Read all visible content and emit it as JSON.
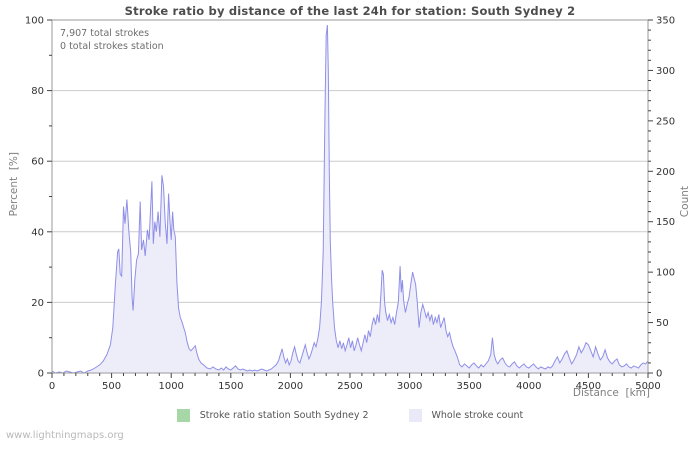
{
  "watermark": "www.lightningmaps.org",
  "chart_data": {
    "type": "area",
    "title": "Stroke ratio by distance of the last 24h for station: South Sydney 2",
    "annotations": [
      "7,907 total strokes",
      "0 total strokes station"
    ],
    "x_axis": {
      "label": "Distance  [km]",
      "min": 0,
      "max": 5000,
      "major": 500,
      "minor": 100,
      "ticks": [
        0,
        500,
        1000,
        1500,
        2000,
        2500,
        3000,
        3500,
        4000,
        4500,
        5000
      ]
    },
    "y_left": {
      "label": "Percent  [%]",
      "min": 0,
      "max": 100,
      "major": 20,
      "minor": 10,
      "ticks": [
        0,
        20,
        40,
        60,
        80,
        100
      ]
    },
    "y_right": {
      "label": "Count",
      "min": 0,
      "max": 350,
      "major": 50,
      "minor": 10,
      "ticks": [
        0,
        50,
        100,
        150,
        200,
        250,
        300,
        350
      ]
    },
    "grid": "horizontal-only",
    "legend_position": "bottom-center",
    "legend": [
      {
        "label": "Stroke ratio station South Sydney 2",
        "color": "#a7d7a7"
      },
      {
        "label": "Whole stroke count",
        "color": "#e9e9f8"
      }
    ],
    "colors": {
      "line": "#8f8fe8",
      "fill": "#ededf9",
      "grid": "#cccccc",
      "frame": "#9a9a9a",
      "tick": "#444444",
      "tick_label": "#333333"
    },
    "series": [
      {
        "name": "Whole stroke count",
        "axis": "right",
        "points": [
          [
            0,
            2
          ],
          [
            30,
            0
          ],
          [
            60,
            1
          ],
          [
            90,
            0
          ],
          [
            120,
            2
          ],
          [
            150,
            1
          ],
          [
            180,
            0
          ],
          [
            210,
            1
          ],
          [
            240,
            2
          ],
          [
            270,
            0
          ],
          [
            300,
            2
          ],
          [
            330,
            3
          ],
          [
            360,
            5
          ],
          [
            400,
            8
          ],
          [
            430,
            12
          ],
          [
            460,
            18
          ],
          [
            490,
            28
          ],
          [
            510,
            45
          ],
          [
            530,
            85
          ],
          [
            550,
            120
          ],
          [
            560,
            123
          ],
          [
            572,
            98
          ],
          [
            585,
            96
          ],
          [
            600,
            165
          ],
          [
            612,
            148
          ],
          [
            628,
            172
          ],
          [
            645,
            140
          ],
          [
            660,
            120
          ],
          [
            672,
            75
          ],
          [
            680,
            62
          ],
          [
            695,
            92
          ],
          [
            710,
            112
          ],
          [
            725,
            118
          ],
          [
            740,
            170
          ],
          [
            752,
            122
          ],
          [
            768,
            132
          ],
          [
            782,
            116
          ],
          [
            800,
            142
          ],
          [
            815,
            132
          ],
          [
            838,
            190
          ],
          [
            850,
            128
          ],
          [
            862,
            150
          ],
          [
            875,
            140
          ],
          [
            890,
            160
          ],
          [
            905,
            135
          ],
          [
            922,
            196
          ],
          [
            935,
            185
          ],
          [
            950,
            150
          ],
          [
            965,
            128
          ],
          [
            978,
            178
          ],
          [
            990,
            150
          ],
          [
            1000,
            132
          ],
          [
            1012,
            160
          ],
          [
            1022,
            142
          ],
          [
            1034,
            135
          ],
          [
            1048,
            90
          ],
          [
            1062,
            64
          ],
          [
            1076,
            55
          ],
          [
            1090,
            51
          ],
          [
            1105,
            45
          ],
          [
            1118,
            40
          ],
          [
            1135,
            30
          ],
          [
            1150,
            24
          ],
          [
            1165,
            22
          ],
          [
            1180,
            24
          ],
          [
            1202,
            27
          ],
          [
            1215,
            20
          ],
          [
            1230,
            14
          ],
          [
            1250,
            10
          ],
          [
            1272,
            8
          ],
          [
            1300,
            5
          ],
          [
            1328,
            4
          ],
          [
            1350,
            6
          ],
          [
            1375,
            4
          ],
          [
            1400,
            3
          ],
          [
            1420,
            5
          ],
          [
            1440,
            3
          ],
          [
            1460,
            6
          ],
          [
            1480,
            4
          ],
          [
            1500,
            3
          ],
          [
            1520,
            5
          ],
          [
            1540,
            7
          ],
          [
            1560,
            4
          ],
          [
            1580,
            3
          ],
          [
            1600,
            4
          ],
          [
            1620,
            3
          ],
          [
            1640,
            2
          ],
          [
            1660,
            3
          ],
          [
            1680,
            2
          ],
          [
            1700,
            3
          ],
          [
            1720,
            2
          ],
          [
            1740,
            3
          ],
          [
            1760,
            4
          ],
          [
            1780,
            3
          ],
          [
            1800,
            2
          ],
          [
            1820,
            3
          ],
          [
            1840,
            4
          ],
          [
            1860,
            6
          ],
          [
            1880,
            8
          ],
          [
            1900,
            12
          ],
          [
            1915,
            18
          ],
          [
            1930,
            24
          ],
          [
            1945,
            16
          ],
          [
            1960,
            10
          ],
          [
            1975,
            14
          ],
          [
            1990,
            8
          ],
          [
            2005,
            12
          ],
          [
            2020,
            20
          ],
          [
            2035,
            26
          ],
          [
            2050,
            18
          ],
          [
            2065,
            12
          ],
          [
            2080,
            10
          ],
          [
            2095,
            16
          ],
          [
            2110,
            22
          ],
          [
            2125,
            28
          ],
          [
            2140,
            20
          ],
          [
            2155,
            14
          ],
          [
            2170,
            18
          ],
          [
            2185,
            24
          ],
          [
            2200,
            30
          ],
          [
            2215,
            26
          ],
          [
            2230,
            34
          ],
          [
            2245,
            45
          ],
          [
            2260,
            70
          ],
          [
            2275,
            120
          ],
          [
            2290,
            260
          ],
          [
            2300,
            335
          ],
          [
            2310,
            345
          ],
          [
            2318,
            300
          ],
          [
            2326,
            200
          ],
          [
            2335,
            130
          ],
          [
            2345,
            95
          ],
          [
            2355,
            70
          ],
          [
            2370,
            45
          ],
          [
            2385,
            32
          ],
          [
            2400,
            25
          ],
          [
            2415,
            32
          ],
          [
            2430,
            24
          ],
          [
            2445,
            30
          ],
          [
            2460,
            22
          ],
          [
            2475,
            28
          ],
          [
            2490,
            35
          ],
          [
            2505,
            25
          ],
          [
            2520,
            32
          ],
          [
            2535,
            22
          ],
          [
            2550,
            28
          ],
          [
            2565,
            35
          ],
          [
            2580,
            28
          ],
          [
            2595,
            22
          ],
          [
            2610,
            30
          ],
          [
            2625,
            38
          ],
          [
            2640,
            30
          ],
          [
            2655,
            42
          ],
          [
            2670,
            36
          ],
          [
            2685,
            48
          ],
          [
            2700,
            55
          ],
          [
            2715,
            48
          ],
          [
            2730,
            58
          ],
          [
            2745,
            50
          ],
          [
            2760,
            80
          ],
          [
            2770,
            102
          ],
          [
            2780,
            98
          ],
          [
            2790,
            70
          ],
          [
            2800,
            60
          ],
          [
            2815,
            52
          ],
          [
            2830,
            58
          ],
          [
            2845,
            50
          ],
          [
            2860,
            55
          ],
          [
            2875,
            48
          ],
          [
            2890,
            60
          ],
          [
            2905,
            70
          ],
          [
            2920,
            106
          ],
          [
            2930,
            80
          ],
          [
            2940,
            92
          ],
          [
            2950,
            72
          ],
          [
            2965,
            60
          ],
          [
            2980,
            68
          ],
          [
            2995,
            75
          ],
          [
            3010,
            88
          ],
          [
            3025,
            100
          ],
          [
            3035,
            95
          ],
          [
            3050,
            88
          ],
          [
            3065,
            70
          ],
          [
            3080,
            45
          ],
          [
            3095,
            60
          ],
          [
            3110,
            68
          ],
          [
            3125,
            62
          ],
          [
            3140,
            55
          ],
          [
            3155,
            60
          ],
          [
            3170,
            52
          ],
          [
            3185,
            58
          ],
          [
            3200,
            48
          ],
          [
            3215,
            55
          ],
          [
            3230,
            50
          ],
          [
            3245,
            58
          ],
          [
            3260,
            45
          ],
          [
            3275,
            50
          ],
          [
            3290,
            55
          ],
          [
            3305,
            42
          ],
          [
            3320,
            36
          ],
          [
            3335,
            40
          ],
          [
            3350,
            32
          ],
          [
            3365,
            26
          ],
          [
            3380,
            22
          ],
          [
            3400,
            16
          ],
          [
            3420,
            8
          ],
          [
            3440,
            6
          ],
          [
            3460,
            9
          ],
          [
            3480,
            7
          ],
          [
            3500,
            5
          ],
          [
            3520,
            8
          ],
          [
            3540,
            10
          ],
          [
            3560,
            7
          ],
          [
            3580,
            5
          ],
          [
            3600,
            8
          ],
          [
            3620,
            6
          ],
          [
            3640,
            9
          ],
          [
            3660,
            12
          ],
          [
            3680,
            18
          ],
          [
            3695,
            35
          ],
          [
            3710,
            18
          ],
          [
            3725,
            12
          ],
          [
            3740,
            9
          ],
          [
            3760,
            13
          ],
          [
            3780,
            15
          ],
          [
            3800,
            10
          ],
          [
            3820,
            7
          ],
          [
            3840,
            6
          ],
          [
            3860,
            9
          ],
          [
            3880,
            11
          ],
          [
            3900,
            7
          ],
          [
            3920,
            5
          ],
          [
            3940,
            7
          ],
          [
            3960,
            9
          ],
          [
            3980,
            6
          ],
          [
            4000,
            5
          ],
          [
            4020,
            7
          ],
          [
            4040,
            9
          ],
          [
            4060,
            6
          ],
          [
            4080,
            4
          ],
          [
            4100,
            6
          ],
          [
            4120,
            5
          ],
          [
            4140,
            4
          ],
          [
            4160,
            6
          ],
          [
            4180,
            5
          ],
          [
            4200,
            7
          ],
          [
            4220,
            12
          ],
          [
            4240,
            16
          ],
          [
            4260,
            10
          ],
          [
            4280,
            14
          ],
          [
            4300,
            19
          ],
          [
            4320,
            22
          ],
          [
            4340,
            15
          ],
          [
            4360,
            9
          ],
          [
            4380,
            13
          ],
          [
            4400,
            18
          ],
          [
            4420,
            26
          ],
          [
            4440,
            20
          ],
          [
            4460,
            24
          ],
          [
            4480,
            30
          ],
          [
            4500,
            28
          ],
          [
            4520,
            22
          ],
          [
            4540,
            16
          ],
          [
            4560,
            26
          ],
          [
            4580,
            19
          ],
          [
            4600,
            13
          ],
          [
            4620,
            16
          ],
          [
            4640,
            23
          ],
          [
            4660,
            15
          ],
          [
            4680,
            11
          ],
          [
            4700,
            9
          ],
          [
            4720,
            12
          ],
          [
            4740,
            14
          ],
          [
            4760,
            8
          ],
          [
            4780,
            6
          ],
          [
            4800,
            7
          ],
          [
            4820,
            9
          ],
          [
            4840,
            6
          ],
          [
            4860,
            5
          ],
          [
            4880,
            7
          ],
          [
            4900,
            6
          ],
          [
            4920,
            5
          ],
          [
            4940,
            8
          ],
          [
            4960,
            10
          ],
          [
            4980,
            9
          ],
          [
            5000,
            12
          ]
        ]
      },
      {
        "name": "Stroke ratio station South Sydney 2",
        "axis": "left",
        "note": "flat at zero (0 total strokes station)",
        "points": [
          [
            0,
            0
          ],
          [
            5000,
            0
          ]
        ]
      }
    ]
  }
}
